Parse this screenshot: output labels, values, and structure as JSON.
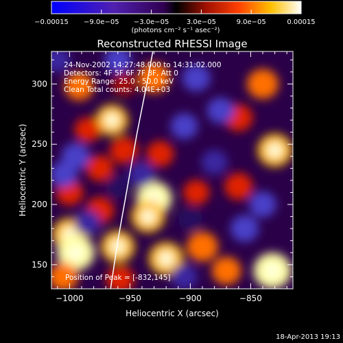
{
  "chart_data": {
    "type": "heatmap",
    "title": "Reconstructed RHESSI Image",
    "xlabel": "Heliocentric X (arcsec)",
    "ylabel": "Heliocentric Y (arcsec)",
    "xlim": [
      -1015,
      -815
    ],
    "ylim": [
      130,
      327
    ],
    "x_ticks": [
      -1000,
      -950,
      -900,
      -850
    ],
    "x_tick_labels": [
      "−1000",
      "−950",
      "−900",
      "−850"
    ],
    "y_ticks": [
      150,
      200,
      250,
      300
    ],
    "y_tick_labels": [
      "150",
      "200",
      "250",
      "300"
    ],
    "colorbar": {
      "range": [
        -0.00015,
        0.00015
      ],
      "ticks": [
        -0.00015,
        -9e-05,
        -3e-05,
        3e-05,
        9e-05,
        0.00015
      ],
      "tick_labels": [
        "−0.00015",
        "−9.0e−05",
        "−3.0e−05",
        "3.0e−05",
        "9.0e−05",
        "0.00015"
      ],
      "unit_label": "(photons cm⁻² s⁻¹ asec⁻²)"
    },
    "annotations": [
      "24-Nov-2002 14:27:48.000 to 14:31:02.000",
      "Detectors: 4F 5F 6F 7F 8F, Att 0",
      "Energy Range: 25.0 - 50.0 keV",
      "Clean     Total counts: 4.04E+03",
      "Position of Peak = [-832,145]"
    ],
    "limb": [
      [
        -966,
        130
      ],
      [
        -960,
        170
      ],
      [
        -952,
        215
      ],
      [
        -944,
        260
      ],
      [
        -936,
        300
      ],
      [
        -931,
        327
      ]
    ],
    "blobs": [
      {
        "x": -930,
        "y": 305,
        "v": 0.7
      },
      {
        "x": -955,
        "y": 300,
        "v": 0.4
      },
      {
        "x": -992,
        "y": 298,
        "v": 0.6
      },
      {
        "x": -840,
        "y": 300,
        "v": 0.7
      },
      {
        "x": -860,
        "y": 272,
        "v": 0.55
      },
      {
        "x": -965,
        "y": 270,
        "v": 0.75
      },
      {
        "x": -985,
        "y": 262,
        "v": 0.45
      },
      {
        "x": -955,
        "y": 245,
        "v": 0.55
      },
      {
        "x": -925,
        "y": 242,
        "v": 0.5
      },
      {
        "x": -830,
        "y": 245,
        "v": 0.85
      },
      {
        "x": -975,
        "y": 230,
        "v": 0.5
      },
      {
        "x": -1000,
        "y": 210,
        "v": 0.5
      },
      {
        "x": -975,
        "y": 195,
        "v": 0.55
      },
      {
        "x": -930,
        "y": 205,
        "v": 0.9
      },
      {
        "x": -935,
        "y": 190,
        "v": 0.8
      },
      {
        "x": -895,
        "y": 210,
        "v": 0.45
      },
      {
        "x": -860,
        "y": 215,
        "v": 0.55
      },
      {
        "x": -1000,
        "y": 175,
        "v": 0.85
      },
      {
        "x": -995,
        "y": 160,
        "v": 1.0
      },
      {
        "x": -960,
        "y": 165,
        "v": 0.8
      },
      {
        "x": -920,
        "y": 155,
        "v": 0.85
      },
      {
        "x": -890,
        "y": 165,
        "v": 0.7
      },
      {
        "x": -870,
        "y": 145,
        "v": 0.6
      },
      {
        "x": -832,
        "y": 145,
        "v": 1.0
      },
      {
        "x": -958,
        "y": 138,
        "v": 0.55
      },
      {
        "x": -1005,
        "y": 140,
        "v": 0.6
      },
      {
        "x": -1010,
        "y": 320,
        "v": -0.45
      },
      {
        "x": -960,
        "y": 320,
        "v": -0.5
      },
      {
        "x": -895,
        "y": 305,
        "v": -0.55
      },
      {
        "x": -875,
        "y": 278,
        "v": -0.5
      },
      {
        "x": -905,
        "y": 265,
        "v": -0.5
      },
      {
        "x": -995,
        "y": 240,
        "v": -0.55
      },
      {
        "x": -940,
        "y": 225,
        "v": -0.45
      },
      {
        "x": -880,
        "y": 235,
        "v": -0.45
      },
      {
        "x": -1005,
        "y": 225,
        "v": -0.5
      },
      {
        "x": -855,
        "y": 180,
        "v": -0.55
      },
      {
        "x": -900,
        "y": 188,
        "v": -0.35
      },
      {
        "x": -960,
        "y": 215,
        "v": -0.35
      },
      {
        "x": -985,
        "y": 185,
        "v": -0.45
      },
      {
        "x": -905,
        "y": 140,
        "v": -0.45
      },
      {
        "x": -840,
        "y": 200,
        "v": -0.5
      }
    ]
  },
  "footer": {
    "timestamp": "18-Apr-2013 19:13"
  }
}
